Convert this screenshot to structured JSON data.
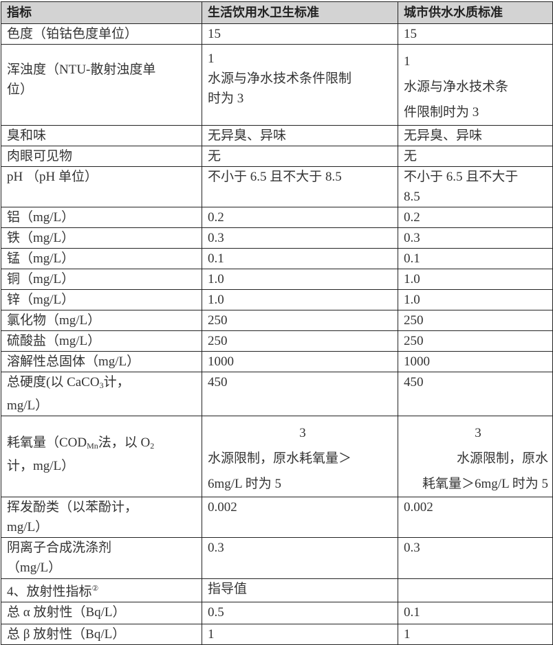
{
  "table": {
    "headers": [
      "指标",
      "生活饮用水卫生标准",
      "城市供水水质标准"
    ],
    "rows": [
      {
        "cells": [
          [
            "色度（铂钴色度单位）"
          ],
          [
            "15"
          ],
          [
            "15"
          ]
        ]
      },
      {
        "cells": [
          [
            "浑浊度（NTU-散射浊度单",
            "位）"
          ],
          [
            "1",
            "水源与净水技术条件限制",
            "时为 3"
          ],
          [
            "1",
            "水源与净水技术条",
            "件限制时为 3"
          ]
        ]
      },
      {
        "cells": [
          [
            "臭和味"
          ],
          [
            "无异臭、异味"
          ],
          [
            "无异臭、异味"
          ]
        ]
      },
      {
        "cells": [
          [
            "肉眼可见物"
          ],
          [
            "无"
          ],
          [
            "无"
          ]
        ]
      },
      {
        "cells": [
          [
            "pH （pH 单位）"
          ],
          [
            "不小于 6.5 且不大于 8.5"
          ],
          [
            "不小于 6.5 且不大于",
            "8.5"
          ]
        ]
      },
      {
        "cells": [
          [
            "铝（mg/L）"
          ],
          [
            "0.2"
          ],
          [
            "0.2"
          ]
        ]
      },
      {
        "cells": [
          [
            "铁（mg/L）"
          ],
          [
            "0.3"
          ],
          [
            "0.3"
          ]
        ]
      },
      {
        "cells": [
          [
            "锰（mg/L）"
          ],
          [
            "0.1"
          ],
          [
            "0.1"
          ]
        ]
      },
      {
        "cells": [
          [
            "铜（mg/L）"
          ],
          [
            "1.0"
          ],
          [
            "1.0"
          ]
        ]
      },
      {
        "cells": [
          [
            "锌（mg/L）"
          ],
          [
            "1.0"
          ],
          [
            "1.0"
          ]
        ]
      },
      {
        "cells": [
          [
            "氯化物（mg/L）"
          ],
          [
            "250"
          ],
          [
            "250"
          ]
        ]
      },
      {
        "cells": [
          [
            "硫酸盐（mg/L）"
          ],
          [
            "250"
          ],
          [
            "250"
          ]
        ]
      },
      {
        "cells": [
          [
            "溶解性总固体（mg/L）"
          ],
          [
            "1000"
          ],
          [
            "1000"
          ]
        ]
      },
      {
        "cells": [
          [
            [
              {
                "t": "总硬度(以 CaCO"
              },
              {
                "sub": "3"
              },
              {
                "t": "计，"
              }
            ],
            "mg/L）"
          ],
          [
            "450"
          ],
          [
            "450"
          ]
        ]
      },
      {
        "cells": [
          [
            [
              {
                "t": "耗氧量（COD"
              },
              {
                "sub": "Mn"
              },
              {
                "t": "法，以 O"
              },
              {
                "sub": "2"
              }
            ],
            "计，mg/L）"
          ],
          [
            "3",
            "水源限制，原水耗氧量＞",
            "6mg/L 时为 5"
          ],
          [
            "3",
            "水源限制，原水",
            "耗氧量＞6mg/L 时为 5"
          ]
        ]
      },
      {
        "cells": [
          [
            "挥发酚类（以苯酚计，",
            "mg/L）"
          ],
          [
            "0.002"
          ],
          [
            "0.002"
          ]
        ]
      },
      {
        "cells": [
          [
            "阴离子合成洗涤剂",
            "（mg/L）"
          ],
          [
            "0.3"
          ],
          [
            "0.3"
          ]
        ]
      },
      {
        "cells": [
          [
            [
              {
                "t": "4、放射性指标"
              },
              {
                "sup": "②"
              }
            ]
          ],
          [
            "指导值"
          ],
          []
        ]
      },
      {
        "cells": [
          [
            "总 α 放射性（Bq/L）"
          ],
          [
            "0.5"
          ],
          [
            "0.1"
          ]
        ]
      },
      {
        "cells": [
          [
            "总 β 放射性（Bq/L）"
          ],
          [
            "1"
          ],
          [
            "1"
          ]
        ]
      }
    ]
  }
}
